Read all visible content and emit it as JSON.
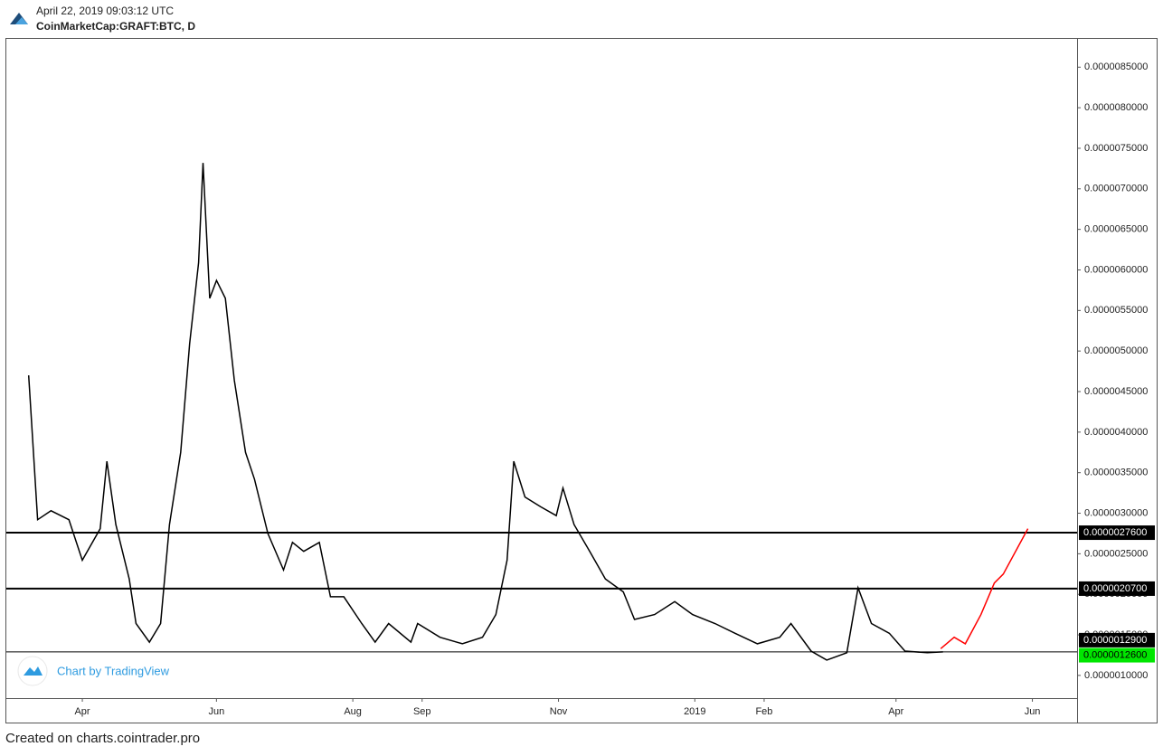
{
  "header": {
    "timestamp": "April 22, 2019 09:03:12 UTC",
    "symbol": "CoinMarketCap:GRAFT:BTC, D"
  },
  "footer": "Created on charts.cointrader.pro",
  "chart_data": {
    "type": "line",
    "watermark": "Chart by TradingView",
    "xlim": [
      -33,
      446
    ],
    "xticks": [
      {
        "value": 1,
        "label": "Apr"
      },
      {
        "value": 61,
        "label": "Jun"
      },
      {
        "value": 122,
        "label": "Aug"
      },
      {
        "value": 153,
        "label": "Sep"
      },
      {
        "value": 214,
        "label": "Nov"
      },
      {
        "value": 275,
        "label": "2019"
      },
      {
        "value": 306,
        "label": "Feb"
      },
      {
        "value": 365,
        "label": "Apr"
      },
      {
        "value": 426,
        "label": "Jun"
      }
    ],
    "ylim": [
      7.2e-07,
      8.86e-06
    ],
    "yticks": [
      {
        "value": 1e-06,
        "label": "0.0000010000"
      },
      {
        "value": 1.5e-06,
        "label": "0.0000015000"
      },
      {
        "value": 2e-06,
        "label": "0.0000020000"
      },
      {
        "value": 2.5e-06,
        "label": "0.0000025000"
      },
      {
        "value": 3e-06,
        "label": "0.0000030000"
      },
      {
        "value": 3.5e-06,
        "label": "0.0000035000"
      },
      {
        "value": 4e-06,
        "label": "0.0000040000"
      },
      {
        "value": 4.5e-06,
        "label": "0.0000045000"
      },
      {
        "value": 5e-06,
        "label": "0.0000050000"
      },
      {
        "value": 5.5e-06,
        "label": "0.0000055000"
      },
      {
        "value": 6e-06,
        "label": "0.0000060000"
      },
      {
        "value": 6.5e-06,
        "label": "0.0000065000"
      },
      {
        "value": 7e-06,
        "label": "0.0000070000"
      },
      {
        "value": 7.5e-06,
        "label": "0.0000075000"
      },
      {
        "value": 8e-06,
        "label": "0.0000080000"
      },
      {
        "value": 8.5e-06,
        "label": "0.0000085000"
      }
    ],
    "series": [
      {
        "color": "#000000",
        "x": [
          -23,
          -19,
          -13,
          -5,
          1,
          9,
          12,
          16,
          22,
          25,
          31,
          36,
          40,
          45,
          49,
          53,
          55,
          58,
          61,
          65,
          69,
          74,
          78,
          84,
          91,
          95,
          100,
          107,
          112,
          118,
          126,
          132,
          138,
          148,
          151,
          161,
          171,
          180,
          186,
          191,
          194,
          199,
          206,
          213,
          216,
          221,
          228,
          235,
          243,
          248,
          257,
          266,
          274,
          284,
          293,
          303,
          313,
          318,
          327,
          334,
          343,
          348,
          354,
          362,
          369,
          379,
          386
        ],
        "values": [
          4.7e-06,
          2.92e-06,
          3.03e-06,
          2.92e-06,
          2.42e-06,
          2.81e-06,
          3.64e-06,
          2.86e-06,
          2.19e-06,
          1.64e-06,
          1.41e-06,
          1.64e-06,
          2.86e-06,
          3.75e-06,
          5.09e-06,
          6.09e-06,
          7.32e-06,
          5.65e-06,
          5.87e-06,
          5.65e-06,
          4.64e-06,
          3.75e-06,
          3.42e-06,
          2.75e-06,
          2.3e-06,
          2.64e-06,
          2.53e-06,
          2.64e-06,
          1.97e-06,
          1.97e-06,
          1.64e-06,
          1.41e-06,
          1.64e-06,
          1.41e-06,
          1.64e-06,
          1.47e-06,
          1.39e-06,
          1.47e-06,
          1.75e-06,
          2.42e-06,
          3.64e-06,
          3.2e-06,
          3.08e-06,
          2.97e-06,
          3.31e-06,
          2.86e-06,
          2.53e-06,
          2.19e-06,
          2.03e-06,
          1.69e-06,
          1.75e-06,
          1.91e-06,
          1.75e-06,
          1.64e-06,
          1.52e-06,
          1.39e-06,
          1.47e-06,
          1.64e-06,
          1.3e-06,
          1.19e-06,
          1.28e-06,
          2.08e-06,
          1.64e-06,
          1.52e-06,
          1.3e-06,
          1.28e-06,
          1.29e-06
        ]
      },
      {
        "color": "#ff0000",
        "x": [
          385,
          391,
          396,
          403,
          409,
          413,
          424
        ],
        "values": [
          1.33e-06,
          1.47e-06,
          1.39e-06,
          1.75e-06,
          2.14e-06,
          2.25e-06,
          2.81e-06
        ]
      }
    ],
    "levels": [
      {
        "value": 2.76e-06,
        "label": "0.0000027600",
        "color": "#000000"
      },
      {
        "value": 2.07e-06,
        "label": "0.0000020700",
        "color": "#000000"
      },
      {
        "value": 1.29e-06,
        "label": "0.0000012900",
        "color": "#000000"
      }
    ],
    "price_label": {
      "value": 1.26e-06,
      "label": "0.0000012600",
      "color": "#00e600"
    }
  }
}
